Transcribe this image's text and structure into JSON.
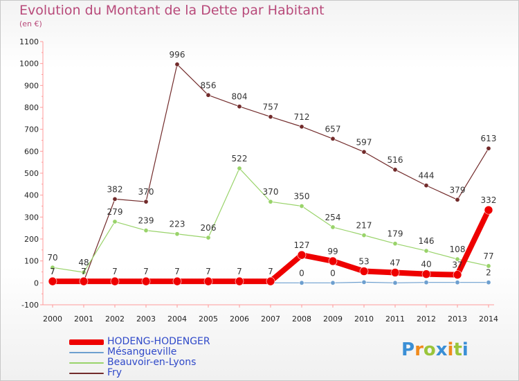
{
  "title": "Evolution du Montant de la Dette par Habitant",
  "subtitle": "(en €)",
  "logo": "Proxiti",
  "chart_data": {
    "type": "line",
    "x": [
      "2000",
      "2001",
      "2002",
      "2003",
      "2004",
      "2005",
      "2006",
      "2007",
      "2008",
      "2009",
      "2010",
      "2011",
      "2012",
      "2013",
      "2014"
    ],
    "ylim": [
      -100,
      1100
    ],
    "yticks": [
      -100,
      0,
      100,
      200,
      300,
      400,
      500,
      600,
      700,
      800,
      900,
      1000,
      1100
    ],
    "grid": false,
    "legend_position": "bottom-left",
    "series": [
      {
        "name": "Fry",
        "color": "#722b2b",
        "width": 1.2,
        "marker": 3.2,
        "values": [
          7,
          7,
          382,
          370,
          996,
          856,
          804,
          757,
          712,
          657,
          597,
          516,
          444,
          379,
          613
        ],
        "labels": [
          "7",
          "7",
          "382",
          "370",
          "996",
          "856",
          "804",
          "757",
          "712",
          "657",
          "597",
          "516",
          "444",
          "379",
          "613"
        ]
      },
      {
        "name": "Beauvoir-en-Lyons",
        "color": "#99d36a",
        "width": 1.2,
        "marker": 3.2,
        "values": [
          70,
          48,
          279,
          239,
          223,
          206,
          522,
          370,
          350,
          254,
          217,
          179,
          146,
          108,
          77
        ],
        "labels": [
          "70",
          "48",
          "279",
          "239",
          "223",
          "206",
          "522",
          "370",
          "350",
          "254",
          "217",
          "179",
          "146",
          "108",
          "77"
        ]
      },
      {
        "name": "Mésangueville",
        "color": "#6d9fcf",
        "width": 1.2,
        "marker": 3.2,
        "values": [
          0,
          0,
          0,
          0,
          0,
          0,
          0,
          0,
          0,
          0,
          3,
          0,
          2,
          2,
          2
        ],
        "labels": [
          "",
          "",
          "",
          "",
          "",
          "",
          "",
          "",
          "0",
          "0",
          "",
          "",
          "",
          "",
          "2"
        ]
      },
      {
        "name": "HODENG-HODENGER",
        "color": "#ee0000",
        "width": 8,
        "marker": 6,
        "values": [
          7,
          7,
          7,
          7,
          7,
          7,
          7,
          7,
          127,
          99,
          53,
          47,
          40,
          37,
          332
        ],
        "labels": [
          "7",
          "7",
          "7",
          "7",
          "7",
          "7",
          "7",
          "7",
          "127",
          "99",
          "53",
          "47",
          "40",
          "37",
          "332"
        ]
      }
    ]
  },
  "legend": [
    {
      "label": "HODENG-HODENGER",
      "color": "#ee0000",
      "thickness": 8
    },
    {
      "label": "Mésangueville",
      "color": "#6d9fcf",
      "thickness": 2
    },
    {
      "label": "Beauvoir-en-Lyons",
      "color": "#99d36a",
      "thickness": 2
    },
    {
      "label": "Fry",
      "color": "#722b2b",
      "thickness": 2
    }
  ]
}
